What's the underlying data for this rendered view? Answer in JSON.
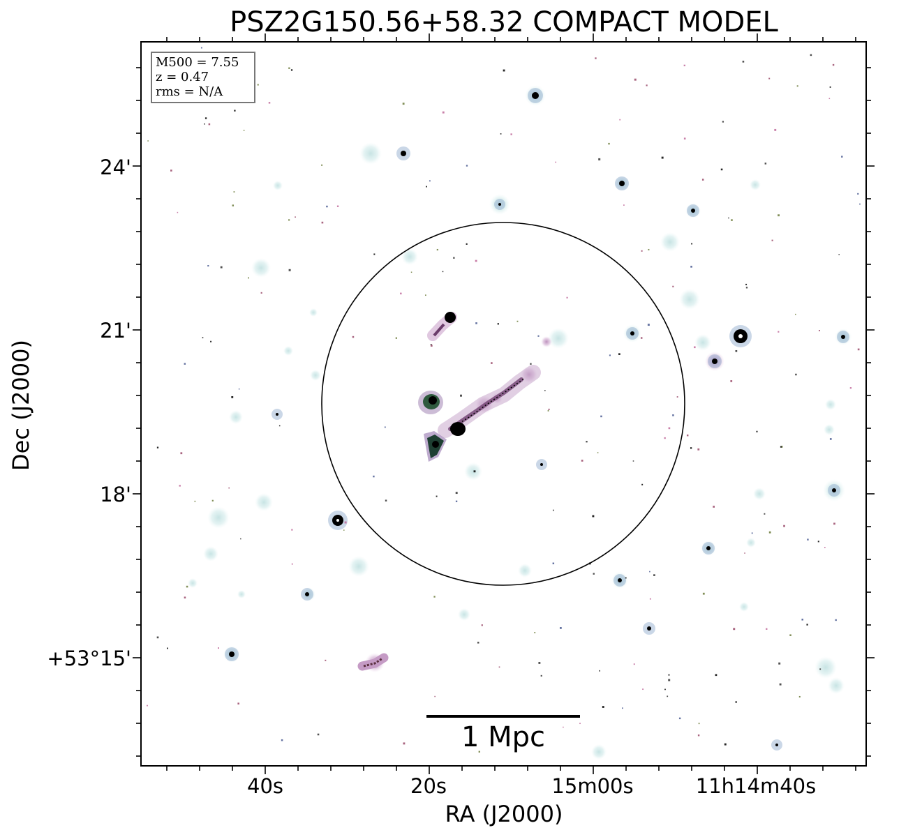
{
  "title": "PSZ2G150.56+58.32 COMPACT MODEL",
  "axes": {
    "xlabel": "RA (J2000)",
    "ylabel": "Dec (J2000)",
    "x_ticks": [
      "40s",
      "20s",
      "15m00s",
      "11h14m40s"
    ],
    "y_ticks": [
      "24'",
      "21'",
      "18'",
      "+53°15'"
    ]
  },
  "info": {
    "m500": "M500 = 7.55",
    "z": "z = 0.47",
    "rms": "rms = N/A"
  },
  "scalebar": {
    "label": "1 Mpc"
  },
  "colors": {
    "halo": "#d6ecec",
    "core": "#000000",
    "pink": "#c7a0c8",
    "green": "#5c7a3a",
    "frame": "#000000"
  }
}
